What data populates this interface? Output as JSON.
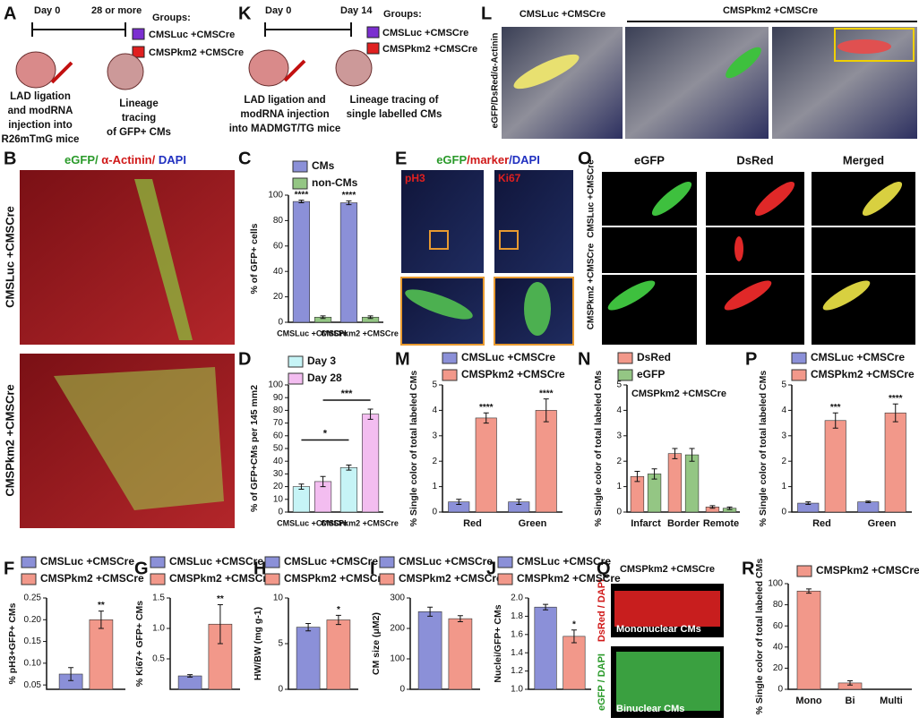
{
  "figure": {
    "A": {
      "label": "A",
      "start": "Day 0",
      "end": "28 or more",
      "groups_title": "Groups:",
      "groups": [
        "CMSLuc +CMSCre",
        "CMSPkm2 +CMSCre"
      ],
      "left_caption": [
        "LAD ligation",
        "and modRNA",
        "injection into",
        "R26mTmG mice"
      ],
      "right_caption": [
        "Lineage",
        "tracing",
        "of GFP+ CMs"
      ]
    },
    "K": {
      "label": "K",
      "start": "Day 0",
      "end": "Day 14",
      "groups_title": "Groups:",
      "groups": [
        "CMSLuc +CMSCre",
        "CMSPkm2 +CMSCre"
      ],
      "left_caption": [
        "LAD ligation and",
        "modRNA injection",
        "into MADMGT/TG mice"
      ],
      "right_caption": [
        "Lineage tracing of",
        "single labelled CMs"
      ]
    },
    "L": {
      "label": "L",
      "stain": "eGFP/DsRed/α-Actinin",
      "groups": [
        "CMSLuc +CMSCre",
        "CMSPkm2 +CMSCre"
      ]
    },
    "B": {
      "label": "B",
      "stain": [
        "eGFP/",
        "α-Actinin/",
        "DAPI"
      ],
      "rows": [
        "CMSLuc +CMSCre",
        "CMSPkm2 +CMSCre"
      ]
    },
    "E": {
      "label": "E",
      "stain": [
        "eGFP",
        "/marker",
        "/DAPI"
      ],
      "markers": [
        "pH3",
        "Ki67"
      ]
    },
    "O": {
      "label": "O",
      "columns": [
        "eGFP",
        "DsRed",
        "Merged"
      ],
      "rows": [
        "CMSLuc +CMSCre",
        "CMSPkm2 +CMSCre"
      ]
    },
    "Q": {
      "label": "Q",
      "group": "CMSPkm2 +CMSCre",
      "stains": [
        "DsRed / DAPI",
        "eGFP / DAPI"
      ],
      "captions": [
        "Mononuclear CMs",
        "Binuclear CMs"
      ]
    }
  },
  "chart_data": [
    {
      "type": "bar",
      "panel": "C",
      "categories": [
        "CMSLuc +CMSCre",
        "CMSPkm2 +CMSCre"
      ],
      "series": [
        {
          "name": "CMs",
          "color": "#8b90d8",
          "values": [
            95,
            94
          ],
          "errors": [
            1,
            1.5
          ]
        },
        {
          "name": "non-CMs",
          "color": "#94c684",
          "values": [
            4,
            4
          ],
          "errors": [
            1,
            1
          ]
        }
      ],
      "ylim": [
        0,
        100
      ],
      "yticks": [
        0,
        20,
        40,
        60,
        80,
        100
      ],
      "y_label": "% of GFP+ cells",
      "annotations": [
        "****",
        "****"
      ]
    },
    {
      "type": "bar",
      "panel": "D",
      "categories": [
        "CMSLuc +CMSCre",
        "CMSPkm2 +CMSCre"
      ],
      "series": [
        {
          "name": "Day 3",
          "color": "#c6f4f6",
          "values": [
            20,
            35
          ],
          "errors": [
            2,
            2
          ]
        },
        {
          "name": "Day 28",
          "color": "#f3bdf0",
          "values": [
            24,
            77
          ],
          "errors": [
            4,
            4
          ]
        }
      ],
      "ylim": [
        0,
        100
      ],
      "yticks": [
        0,
        10,
        20,
        30,
        40,
        50,
        60,
        70,
        80,
        90,
        100
      ],
      "y_label": "% of GFP+CMs per 145 mm2",
      "annotations": [
        "*",
        "***"
      ]
    },
    {
      "type": "bar",
      "panel": "M",
      "categories": [
        "Red",
        "Green"
      ],
      "series": [
        {
          "name": "CMSLuc +CMSCre",
          "color": "#8b90d8",
          "values": [
            0.4,
            0.4
          ],
          "errors": [
            0.1,
            0.1
          ]
        },
        {
          "name": "CMSPkm2 +CMSCre",
          "color": "#f2988a",
          "values": [
            3.7,
            4.0
          ],
          "errors": [
            0.2,
            0.45
          ]
        }
      ],
      "ylim": [
        0,
        5
      ],
      "yticks": [
        0,
        1,
        2,
        3,
        4,
        5
      ],
      "y_label": "% Single color of total labeled CMs",
      "annotations": [
        "****",
        "****"
      ]
    },
    {
      "type": "bar",
      "panel": "N",
      "subtitle": "CMSPkm2 +CMSCre",
      "categories": [
        "Infarct",
        "Border",
        "Remote"
      ],
      "series": [
        {
          "name": "DsRed",
          "color": "#f2988a",
          "values": [
            1.4,
            2.3,
            0.2
          ],
          "errors": [
            0.2,
            0.2,
            0.05
          ]
        },
        {
          "name": "eGFP",
          "color": "#94c684",
          "values": [
            1.5,
            2.25,
            0.15
          ],
          "errors": [
            0.2,
            0.25,
            0.05
          ]
        }
      ],
      "ylim": [
        0,
        5
      ],
      "yticks": [
        0,
        1,
        2,
        3,
        4,
        5
      ],
      "y_label": "% Single color of total labeled CMs"
    },
    {
      "type": "bar",
      "panel": "P",
      "categories": [
        "Red",
        "Green"
      ],
      "series": [
        {
          "name": "CMSLuc +CMSCre",
          "color": "#8b90d8",
          "values": [
            0.35,
            0.4
          ],
          "errors": [
            0.05,
            0.03
          ]
        },
        {
          "name": "CMSPkm2 +CMSCre",
          "color": "#f2988a",
          "values": [
            3.6,
            3.9
          ],
          "errors": [
            0.3,
            0.35
          ]
        }
      ],
      "ylim": [
        0,
        5
      ],
      "yticks": [
        0,
        1,
        2,
        3,
        4,
        5
      ],
      "y_label": "% Single color of total labeled CMs",
      "annotations": [
        "***",
        "****"
      ]
    },
    {
      "type": "bar",
      "panel": "R",
      "categories": [
        "Mono",
        "Bi",
        "Multi"
      ],
      "series": [
        {
          "name": "CMSPkm2 +CMSCre",
          "color": "#f2988a",
          "values": [
            93,
            6,
            0
          ],
          "errors": [
            2,
            2,
            0
          ]
        }
      ],
      "ylim": [
        0,
        100
      ],
      "yticks": [
        0,
        20,
        40,
        60,
        80,
        100
      ],
      "y_label": "% Single color of total labeled CMs"
    },
    {
      "type": "bar",
      "panel": "F",
      "series": [
        {
          "name": "CMSLuc +CMSCre",
          "color": "#8b90d8",
          "values": [
            0.075
          ],
          "errors": [
            0.015
          ]
        },
        {
          "name": "CMSPkm2 +CMSCre",
          "color": "#f2988a",
          "values": [
            0.2
          ],
          "errors": [
            0.02
          ]
        }
      ],
      "ylim": [
        0.04,
        0.25
      ],
      "yticks": [
        0.05,
        {
          "value": 0.1,
          "label": "0.10"
        },
        0.15,
        {
          "value": 0.2,
          "label": "0.20"
        },
        0.25
      ],
      "y_label": "% pH3+GFP+ CMs",
      "annotations": [
        "**"
      ]
    },
    {
      "type": "bar",
      "panel": "G",
      "series": [
        {
          "name": "CMSLuc +CMSCre",
          "color": "#8b90d8",
          "values": [
            0.22
          ],
          "errors": [
            0.02
          ]
        },
        {
          "name": "CMSPkm2 +CMSCre",
          "color": "#f2988a",
          "values": [
            1.07
          ],
          "errors": [
            0.32
          ]
        }
      ],
      "ylim": [
        0,
        1.5
      ],
      "yticks": [
        0.5,
        {
          "value": 1,
          "label": "1.0"
        },
        1.5
      ],
      "y_label": "% Ki67+ GFP+ CMs",
      "annotations": [
        "**"
      ]
    },
    {
      "type": "bar",
      "panel": "H",
      "series": [
        {
          "name": "CMSLuc +CMSCre",
          "color": "#8b90d8",
          "values": [
            6.8
          ],
          "errors": [
            0.4
          ]
        },
        {
          "name": "CMSPkm2 +CMSCre",
          "color": "#f2988a",
          "values": [
            7.6
          ],
          "errors": [
            0.5
          ]
        }
      ],
      "ylim": [
        0,
        10
      ],
      "yticks": [
        0,
        5,
        10
      ],
      "y_label": "HW/BW (mg g-1)",
      "annotations": [
        "*"
      ]
    },
    {
      "type": "bar",
      "panel": "I",
      "series": [
        {
          "name": "CMSLuc +CMSCre",
          "color": "#8b90d8",
          "values": [
            255
          ],
          "errors": [
            15
          ]
        },
        {
          "name": "CMSPkm2 +CMSCre",
          "color": "#f2988a",
          "values": [
            232
          ],
          "errors": [
            10
          ]
        }
      ],
      "ylim": [
        0,
        300
      ],
      "yticks": [
        0,
        100,
        200,
        300
      ],
      "y_label": "CM size (μM2)"
    },
    {
      "type": "bar",
      "panel": "J",
      "series": [
        {
          "name": "CMSLuc +CMSCre",
          "color": "#8b90d8",
          "values": [
            1.9
          ],
          "errors": [
            0.03
          ]
        },
        {
          "name": "CMSPkm2 +CMSCre",
          "color": "#f2988a",
          "values": [
            1.58
          ],
          "errors": [
            0.07
          ]
        }
      ],
      "ylim": [
        1,
        2
      ],
      "yticks": [
        {
          "value": 1,
          "label": "1.0"
        },
        1.2,
        1.4,
        1.6,
        1.8,
        {
          "value": 2,
          "label": "2.0"
        }
      ],
      "y_label": "Nuclei/GFP+ CMs",
      "annotations": [
        "*"
      ]
    }
  ]
}
